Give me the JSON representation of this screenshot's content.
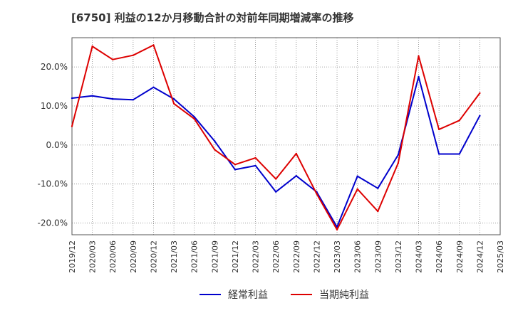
{
  "chart_data": {
    "type": "line",
    "title": "[6750]  利益の12か月移動合計の対前年同期増減率の推移",
    "xlabel": "",
    "ylabel": "",
    "ylim": [
      -23,
      27.5
    ],
    "yticks": [
      -20,
      -10,
      0,
      10,
      20
    ],
    "ytick_labels": [
      "-20.0%",
      "-10.0%",
      "0.0%",
      "10.0%",
      "20.0%"
    ],
    "categories": [
      "2019/12",
      "2020/03",
      "2020/06",
      "2020/09",
      "2020/12",
      "2021/03",
      "2021/06",
      "2021/09",
      "2021/12",
      "2022/03",
      "2022/06",
      "2022/09",
      "2022/12",
      "2023/03",
      "2023/06",
      "2023/09",
      "2023/12",
      "2024/03",
      "2024/06",
      "2024/09",
      "2024/12",
      "2025/03"
    ],
    "series": [
      {
        "name": "経常利益",
        "color": "#0000cc",
        "values": [
          12.0,
          12.6,
          11.8,
          11.6,
          14.8,
          11.8,
          7.2,
          1.0,
          -6.3,
          -5.3,
          -12.0,
          -7.9,
          -12.0,
          -21.0,
          -8.0,
          -11.1,
          -2.5,
          17.5,
          -2.3,
          -2.3,
          7.5,
          null
        ]
      },
      {
        "name": "当期純利益",
        "color": "#dd0000",
        "values": [
          4.8,
          25.3,
          21.9,
          23.0,
          25.6,
          10.6,
          6.7,
          -1.2,
          -5.0,
          -3.3,
          -8.7,
          -2.2,
          -12.5,
          -21.7,
          -11.3,
          -17.0,
          -4.6,
          22.8,
          4.0,
          6.3,
          13.3,
          null
        ]
      }
    ],
    "grid": true,
    "legend_position": "bottom-center"
  }
}
